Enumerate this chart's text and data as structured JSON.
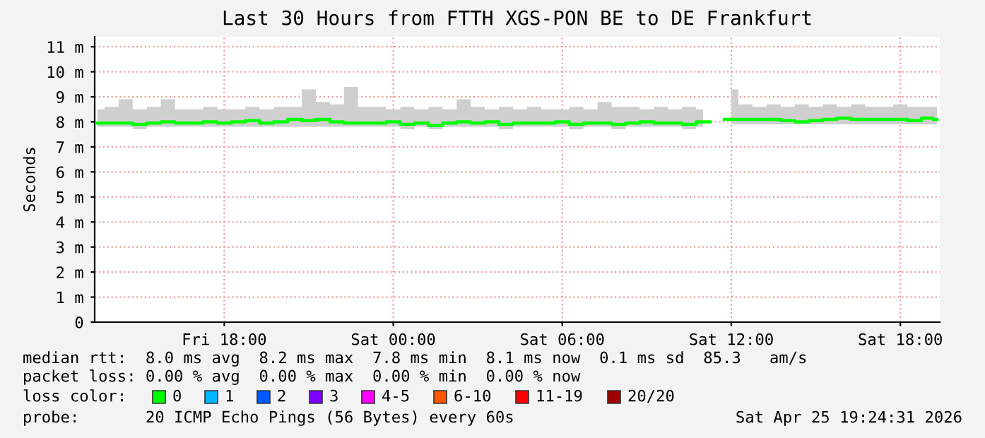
{
  "chart_data": {
    "type": "step",
    "title": "Last 30 Hours from FTTH XGS-PON BE to DE Frankfurt",
    "ylabel": "Seconds",
    "legend_title": "loss color:",
    "x": [
      "2026-04-24T13:30",
      "2026-04-24T14:00",
      "2026-04-24T14:30",
      "2026-04-24T15:00",
      "2026-04-24T15:30",
      "2026-04-24T16:00",
      "2026-04-24T16:30",
      "2026-04-24T17:00",
      "2026-04-24T17:30",
      "2026-04-24T18:00",
      "2026-04-24T18:30",
      "2026-04-24T19:00",
      "2026-04-24T19:30",
      "2026-04-24T20:00",
      "2026-04-24T20:30",
      "2026-04-24T21:00",
      "2026-04-24T21:30",
      "2026-04-24T22:00",
      "2026-04-24T22:30",
      "2026-04-24T23:00",
      "2026-04-24T23:30",
      "2026-04-25T00:00",
      "2026-04-25T00:30",
      "2026-04-25T01:00",
      "2026-04-25T01:30",
      "2026-04-25T02:00",
      "2026-04-25T02:30",
      "2026-04-25T03:00",
      "2026-04-25T03:30",
      "2026-04-25T04:00",
      "2026-04-25T04:30",
      "2026-04-25T05:00",
      "2026-04-25T05:30",
      "2026-04-25T06:00",
      "2026-04-25T06:30",
      "2026-04-25T07:00",
      "2026-04-25T07:30",
      "2026-04-25T08:00",
      "2026-04-25T08:30",
      "2026-04-25T09:00",
      "2026-04-25T09:30",
      "2026-04-25T10:00",
      "2026-04-25T10:30",
      "2026-04-25T11:00",
      "2026-04-25T11:30",
      "2026-04-25T12:00",
      "2026-04-25T12:30",
      "2026-04-25T13:00",
      "2026-04-25T13:30",
      "2026-04-25T14:00",
      "2026-04-25T14:30",
      "2026-04-25T15:00",
      "2026-04-25T15:30",
      "2026-04-25T16:00",
      "2026-04-25T16:30",
      "2026-04-25T17:00",
      "2026-04-25T17:30",
      "2026-04-25T18:00",
      "2026-04-25T18:30",
      "2026-04-25T19:00",
      "2026-04-25T19:18"
    ],
    "series": [
      {
        "name": "0",
        "color": "#00ff00",
        "values": [
          7.95,
          7.95,
          7.95,
          7.9,
          7.95,
          8.0,
          7.95,
          7.95,
          8.0,
          7.95,
          8.0,
          8.05,
          7.95,
          8.0,
          8.1,
          8.05,
          8.1,
          8.0,
          7.95,
          7.95,
          7.95,
          8.0,
          7.9,
          7.95,
          7.85,
          7.95,
          8.0,
          7.95,
          8.0,
          7.9,
          7.95,
          7.95,
          7.95,
          8.0,
          7.9,
          7.95,
          7.95,
          7.9,
          7.95,
          8.0,
          7.95,
          7.95,
          7.9,
          8.0,
          null,
          8.1,
          8.1,
          8.1,
          8.1,
          8.05,
          8.0,
          8.05,
          8.1,
          8.15,
          8.1,
          8.1,
          8.1,
          8.1,
          8.05,
          8.15,
          8.1
        ],
        "upper": [
          8.5,
          8.6,
          8.9,
          8.5,
          8.6,
          8.9,
          8.5,
          8.5,
          8.6,
          8.5,
          8.5,
          8.6,
          8.5,
          8.6,
          8.6,
          9.3,
          8.8,
          8.7,
          9.4,
          8.6,
          8.6,
          8.5,
          8.6,
          8.5,
          8.6,
          8.5,
          8.9,
          8.6,
          8.5,
          8.6,
          8.5,
          8.6,
          8.5,
          8.5,
          8.6,
          8.5,
          8.8,
          8.6,
          8.6,
          8.5,
          8.6,
          8.5,
          8.6,
          8.5,
          null,
          9.3,
          8.7,
          8.6,
          8.7,
          8.6,
          8.7,
          8.6,
          8.7,
          8.6,
          8.7,
          8.6,
          8.6,
          8.7,
          8.6,
          8.6,
          8.6
        ],
        "lower": [
          7.8,
          7.8,
          7.8,
          7.7,
          7.8,
          7.8,
          7.8,
          7.8,
          7.8,
          7.8,
          7.8,
          7.8,
          7.8,
          7.8,
          7.8,
          7.8,
          7.8,
          7.8,
          7.8,
          7.8,
          7.8,
          7.8,
          7.7,
          7.8,
          7.7,
          7.8,
          7.8,
          7.8,
          7.8,
          7.7,
          7.8,
          7.8,
          7.8,
          7.8,
          7.7,
          7.8,
          7.8,
          7.7,
          7.8,
          7.8,
          7.8,
          7.8,
          7.7,
          7.8,
          null,
          7.9,
          7.9,
          7.9,
          7.9,
          7.9,
          7.9,
          7.9,
          7.9,
          7.9,
          7.9,
          7.9,
          7.9,
          7.9,
          7.9,
          7.9,
          7.9
        ]
      },
      {
        "name": "1",
        "color": "#00b8ff",
        "values": [
          null,
          null,
          null,
          null,
          null,
          null,
          null,
          null,
          null,
          null,
          null,
          null,
          null,
          null,
          null,
          null,
          null,
          null,
          null,
          null,
          null,
          null,
          null,
          null,
          null,
          null,
          null,
          null,
          null,
          null,
          null,
          null,
          null,
          null,
          null,
          null,
          null,
          null,
          null,
          null,
          null,
          null,
          null,
          null,
          null,
          null,
          null,
          null,
          null,
          null,
          null,
          null,
          null,
          null,
          null,
          null,
          null,
          null,
          null,
          null,
          null
        ]
      },
      {
        "name": "2",
        "color": "#0059ff",
        "values": [
          null,
          null,
          null,
          null,
          null,
          null,
          null,
          null,
          null,
          null,
          null,
          null,
          null,
          null,
          null,
          null,
          null,
          null,
          null,
          null,
          null,
          null,
          null,
          null,
          null,
          null,
          null,
          null,
          null,
          null,
          null,
          null,
          null,
          null,
          null,
          null,
          null,
          null,
          null,
          null,
          null,
          null,
          null,
          null,
          null,
          null,
          null,
          null,
          null,
          null,
          null,
          null,
          null,
          null,
          null,
          null,
          null,
          null,
          null,
          null,
          null
        ]
      },
      {
        "name": "3",
        "color": "#7e00ff",
        "values": [
          null,
          null,
          null,
          null,
          null,
          null,
          null,
          null,
          null,
          null,
          null,
          null,
          null,
          null,
          null,
          null,
          null,
          null,
          null,
          null,
          null,
          null,
          null,
          null,
          null,
          null,
          null,
          null,
          null,
          null,
          null,
          null,
          null,
          null,
          null,
          null,
          null,
          null,
          null,
          null,
          null,
          null,
          null,
          null,
          null,
          null,
          null,
          null,
          null,
          null,
          null,
          null,
          null,
          null,
          null,
          null,
          null,
          null,
          null,
          null,
          null
        ]
      },
      {
        "name": "4-5",
        "color": "#ff00ff",
        "values": [
          null,
          null,
          null,
          null,
          null,
          null,
          null,
          null,
          null,
          null,
          null,
          null,
          null,
          null,
          null,
          null,
          null,
          null,
          null,
          null,
          null,
          null,
          null,
          null,
          null,
          null,
          null,
          null,
          null,
          null,
          null,
          null,
          null,
          null,
          null,
          null,
          null,
          null,
          null,
          null,
          null,
          null,
          null,
          null,
          null,
          null,
          null,
          null,
          null,
          null,
          null,
          null,
          null,
          null,
          null,
          null,
          null,
          null,
          null,
          null,
          null
        ]
      },
      {
        "name": "6-10",
        "color": "#ff5500",
        "values": [
          null,
          null,
          null,
          null,
          null,
          null,
          null,
          null,
          null,
          null,
          null,
          null,
          null,
          null,
          null,
          null,
          null,
          null,
          null,
          null,
          null,
          null,
          null,
          null,
          null,
          null,
          null,
          null,
          null,
          null,
          null,
          null,
          null,
          null,
          null,
          null,
          null,
          null,
          null,
          null,
          null,
          null,
          null,
          null,
          null,
          null,
          null,
          null,
          null,
          null,
          null,
          null,
          null,
          null,
          null,
          null,
          null,
          null,
          null,
          null,
          null
        ]
      },
      {
        "name": "11-19",
        "color": "#ff0000",
        "values": [
          null,
          null,
          null,
          null,
          null,
          null,
          null,
          null,
          null,
          null,
          null,
          null,
          null,
          null,
          null,
          null,
          null,
          null,
          null,
          null,
          null,
          null,
          null,
          null,
          null,
          null,
          null,
          null,
          null,
          null,
          null,
          null,
          null,
          null,
          null,
          null,
          null,
          null,
          null,
          null,
          null,
          null,
          null,
          null,
          null,
          null,
          null,
          null,
          null,
          null,
          null,
          null,
          null,
          null,
          null,
          null,
          null,
          null,
          null,
          null,
          null
        ]
      },
      {
        "name": "20/20",
        "color": "#a10000",
        "values": [
          null,
          null,
          null,
          null,
          null,
          null,
          null,
          null,
          null,
          null,
          null,
          null,
          null,
          null,
          null,
          null,
          null,
          null,
          null,
          null,
          null,
          null,
          null,
          null,
          null,
          null,
          null,
          null,
          null,
          null,
          null,
          null,
          null,
          null,
          null,
          null,
          null,
          null,
          null,
          null,
          null,
          null,
          null,
          null,
          null,
          null,
          null,
          null,
          null,
          null,
          null,
          null,
          null,
          null,
          null,
          null,
          null,
          null,
          null,
          null,
          null
        ]
      }
    ],
    "xlim": [
      "2026-04-24T13:24",
      "2026-04-25T19:24"
    ],
    "xticks": [
      {
        "value": "2026-04-24T18:00",
        "label": "Fri 18:00"
      },
      {
        "value": "2026-04-25T00:00",
        "label": "Sat 00:00"
      },
      {
        "value": "2026-04-25T06:00",
        "label": "Sat 06:00"
      },
      {
        "value": "2026-04-25T12:00",
        "label": "Sat 12:00"
      },
      {
        "value": "2026-04-25T18:00",
        "label": "Sat 18:00"
      }
    ],
    "ylim": [
      0,
      11.4
    ],
    "yticks": [
      0,
      {
        "value": 1,
        "label": "1 m"
      },
      {
        "value": 2,
        "label": "2 m"
      },
      {
        "value": 3,
        "label": "3 m"
      },
      {
        "value": 4,
        "label": "4 m"
      },
      {
        "value": 5,
        "label": "5 m"
      },
      {
        "value": 6,
        "label": "6 m"
      },
      {
        "value": 7,
        "label": "7 m"
      },
      {
        "value": 8,
        "label": "8 m"
      },
      {
        "value": 9,
        "label": "9 m"
      },
      {
        "value": 10,
        "label": "10 m"
      },
      {
        "value": 11,
        "label": "11 m"
      }
    ],
    "grid": true,
    "legend": "bottom",
    "annotations": [
      "median rtt:  8.0 ms avg  8.2 ms max  7.8 ms min  8.1 ms now  0.1 ms sd  85.3   am/s",
      "packet loss: 0.00 % avg  0.00 % max  0.00 % min  0.00 % now",
      "probe:       20 ICMP Echo Pings (56 Bytes) every 60s",
      "Sat Apr 25 19:24:31 2026"
    ]
  }
}
